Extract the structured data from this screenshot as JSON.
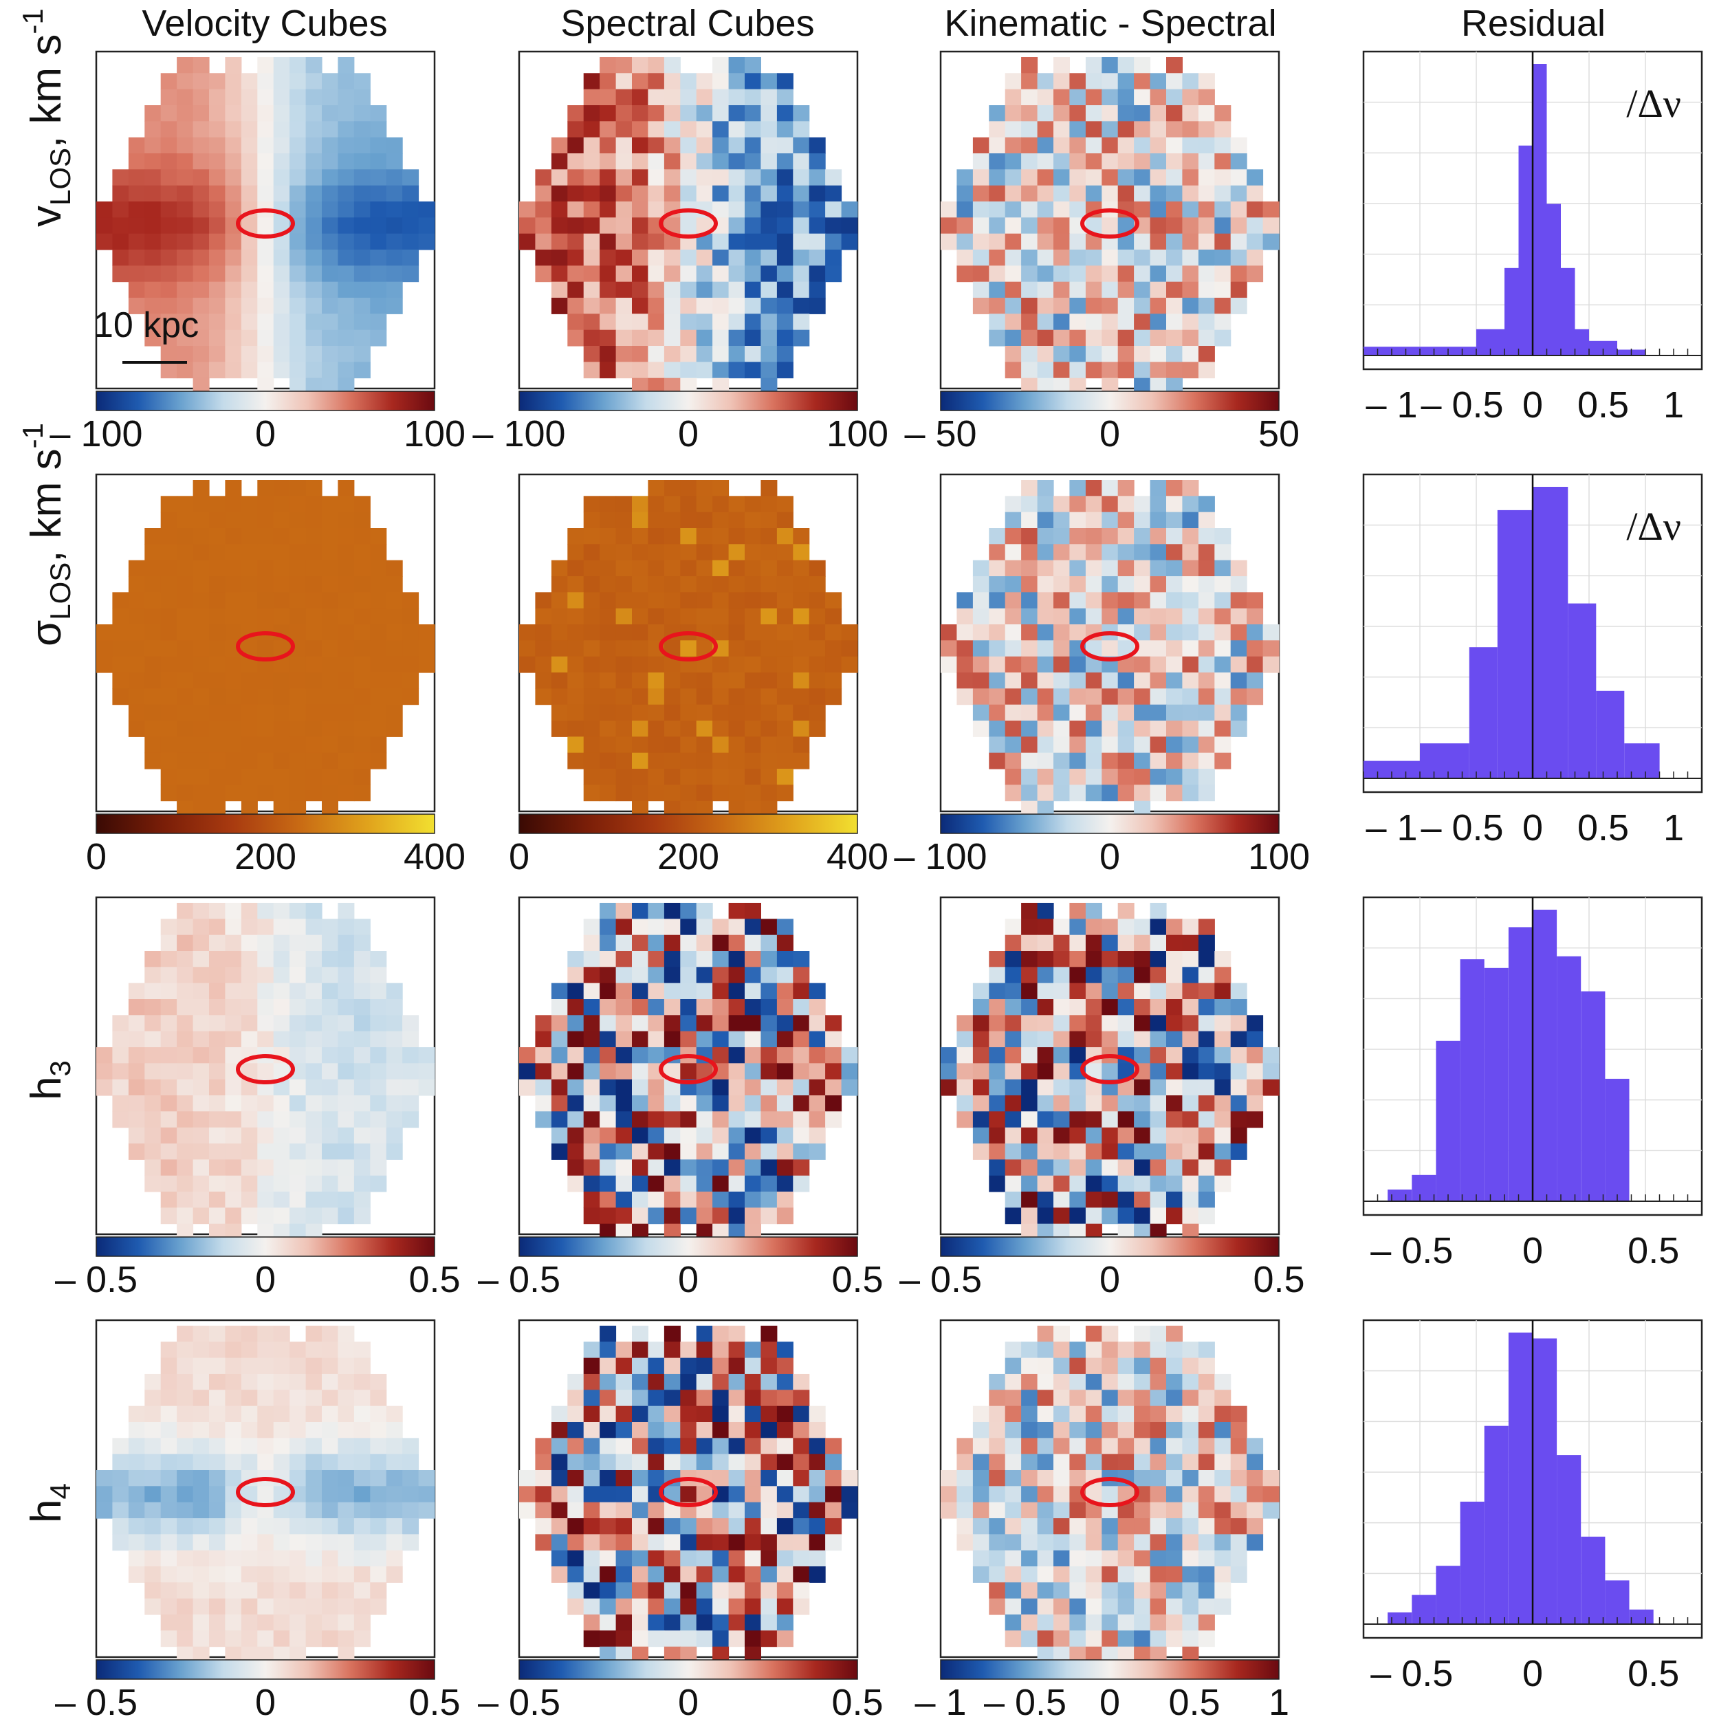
{
  "column_titles": [
    "Velocity Cubes",
    "Spectral Cubes",
    "Kinematic - Spectral",
    "Residual"
  ],
  "row_labels": [
    {
      "main": "v",
      "sub": "LOS",
      "unit": ", km s",
      "sup": "-1"
    },
    {
      "main": "σ",
      "sub": "LOS",
      "unit": ", km s",
      "sup": "-1"
    },
    {
      "main": "h",
      "sub": "3",
      "unit": "",
      "sup": ""
    },
    {
      "main": "h",
      "sub": "4",
      "unit": "",
      "sup": ""
    }
  ],
  "scalebar_label": "10 kpc",
  "residual_annotation": "/Δν",
  "colors": {
    "diverging": [
      "#0b2a78",
      "#1f5bb0",
      "#6aa2cf",
      "#c4dbea",
      "#f4f1ee",
      "#efc3b6",
      "#d9735f",
      "#a8281f",
      "#6a0a10"
    ],
    "heat": [
      "#3a0a04",
      "#7a1e08",
      "#a83a10",
      "#c86a14",
      "#e0a21c",
      "#f2e030"
    ],
    "histogram_fill": "#6a4cf0",
    "ellipse": "#e8141c"
  },
  "chart_data": [
    {
      "type": "heatmap",
      "row": 0,
      "col": 0,
      "pattern": "rotation",
      "cmap": "diverging",
      "colorbar_range": [
        -100,
        100
      ],
      "colorbar_ticks": [
        "– 100",
        "0",
        "100"
      ]
    },
    {
      "type": "heatmap",
      "row": 0,
      "col": 1,
      "pattern": "rotation-noisy",
      "cmap": "diverging",
      "colorbar_range": [
        -100,
        100
      ],
      "colorbar_ticks": [
        "– 100",
        "0",
        "100"
      ]
    },
    {
      "type": "heatmap",
      "row": 0,
      "col": 2,
      "pattern": "noise",
      "cmap": "diverging",
      "colorbar_range": [
        -50,
        50
      ],
      "colorbar_ticks": [
        "– 50",
        "0",
        "50"
      ]
    },
    {
      "type": "bar",
      "row": 0,
      "col": 3,
      "xlim": [
        -1.2,
        1.2
      ],
      "x_ticks": [
        "– 1",
        "– 0.5",
        "0",
        "0.5",
        "1"
      ],
      "x_tick_values": [
        -1,
        -0.5,
        0,
        0.5,
        1
      ],
      "bin_edges": [
        -1.2,
        -0.4,
        -0.2,
        -0.1,
        0,
        0.1,
        0.2,
        0.3,
        0.4,
        0.6,
        0.8
      ],
      "counts": [
        0.03,
        0.09,
        0.3,
        0.72,
        1.0,
        0.52,
        0.3,
        0.09,
        0.05,
        0.02
      ],
      "annotation": true
    },
    {
      "type": "heatmap",
      "row": 1,
      "col": 0,
      "pattern": "flat",
      "cmap": "heat",
      "colorbar_range": [
        0,
        400
      ],
      "colorbar_ticks": [
        "0",
        "200",
        "400"
      ]
    },
    {
      "type": "heatmap",
      "row": 1,
      "col": 1,
      "pattern": "flat-noisy",
      "cmap": "heat",
      "colorbar_range": [
        0,
        400
      ],
      "colorbar_ticks": [
        "0",
        "200",
        "400"
      ]
    },
    {
      "type": "heatmap",
      "row": 1,
      "col": 2,
      "pattern": "noise",
      "cmap": "diverging",
      "colorbar_range": [
        -100,
        100
      ],
      "colorbar_ticks": [
        "– 100",
        "0",
        "100"
      ]
    },
    {
      "type": "bar",
      "row": 1,
      "col": 3,
      "xlim": [
        -1.2,
        1.2
      ],
      "x_ticks": [
        "– 1",
        "– 0.5",
        "0",
        "0.5",
        "1"
      ],
      "x_tick_values": [
        -1,
        -0.5,
        0,
        0.5,
        1
      ],
      "bin_edges": [
        -1.2,
        -0.8,
        -0.45,
        -0.25,
        0,
        0.25,
        0.45,
        0.65,
        0.9
      ],
      "counts": [
        0.06,
        0.12,
        0.45,
        0.92,
        1.0,
        0.6,
        0.3,
        0.12
      ],
      "annotation": true
    },
    {
      "type": "heatmap",
      "row": 2,
      "col": 0,
      "pattern": "rotation-weak",
      "cmap": "diverging",
      "colorbar_range": [
        -0.5,
        0.5
      ],
      "colorbar_ticks": [
        "– 0.5",
        "0",
        "0.5"
      ]
    },
    {
      "type": "heatmap",
      "row": 2,
      "col": 1,
      "pattern": "noise-strong",
      "cmap": "diverging",
      "colorbar_range": [
        -0.5,
        0.5
      ],
      "colorbar_ticks": [
        "– 0.5",
        "0",
        "0.5"
      ]
    },
    {
      "type": "heatmap",
      "row": 2,
      "col": 2,
      "pattern": "noise-strong",
      "cmap": "diverging",
      "colorbar_range": [
        -0.5,
        0.5
      ],
      "colorbar_ticks": [
        "– 0.5",
        "0",
        "0.5"
      ]
    },
    {
      "type": "bar",
      "row": 2,
      "col": 3,
      "xlim": [
        -0.7,
        0.7
      ],
      "x_ticks": [
        "– 0.5",
        "0",
        "0.5"
      ],
      "x_tick_values": [
        -0.5,
        0,
        0.5
      ],
      "bin_edges": [
        -0.6,
        -0.5,
        -0.4,
        -0.3,
        -0.2,
        -0.1,
        0,
        0.1,
        0.2,
        0.3,
        0.4
      ],
      "counts": [
        0.04,
        0.09,
        0.55,
        0.83,
        0.8,
        0.94,
        1.0,
        0.84,
        0.72,
        0.42
      ],
      "annotation": false
    },
    {
      "type": "heatmap",
      "row": 3,
      "col": 0,
      "pattern": "h4",
      "cmap": "diverging",
      "colorbar_range": [
        -0.5,
        0.5
      ],
      "colorbar_ticks": [
        "– 0.5",
        "0",
        "0.5"
      ]
    },
    {
      "type": "heatmap",
      "row": 3,
      "col": 1,
      "pattern": "noise-strong",
      "cmap": "diverging",
      "colorbar_range": [
        -0.5,
        0.5
      ],
      "colorbar_ticks": [
        "– 0.5",
        "0",
        "0.5"
      ]
    },
    {
      "type": "heatmap",
      "row": 3,
      "col": 2,
      "pattern": "noise",
      "cmap": "diverging",
      "colorbar_range": [
        -1,
        1
      ],
      "colorbar_ticks": [
        "– 1",
        "– 0.5",
        "0",
        "0.5",
        "1"
      ]
    },
    {
      "type": "bar",
      "row": 3,
      "col": 3,
      "xlim": [
        -0.7,
        0.7
      ],
      "x_ticks": [
        "– 0.5",
        "0",
        "0.5"
      ],
      "x_tick_values": [
        -0.5,
        0,
        0.5
      ],
      "bin_edges": [
        -0.6,
        -0.5,
        -0.4,
        -0.3,
        -0.2,
        -0.1,
        0,
        0.1,
        0.2,
        0.3,
        0.4,
        0.5
      ],
      "counts": [
        0.04,
        0.1,
        0.2,
        0.42,
        0.68,
        1.0,
        0.98,
        0.58,
        0.3,
        0.15,
        0.05
      ],
      "annotation": false
    }
  ]
}
